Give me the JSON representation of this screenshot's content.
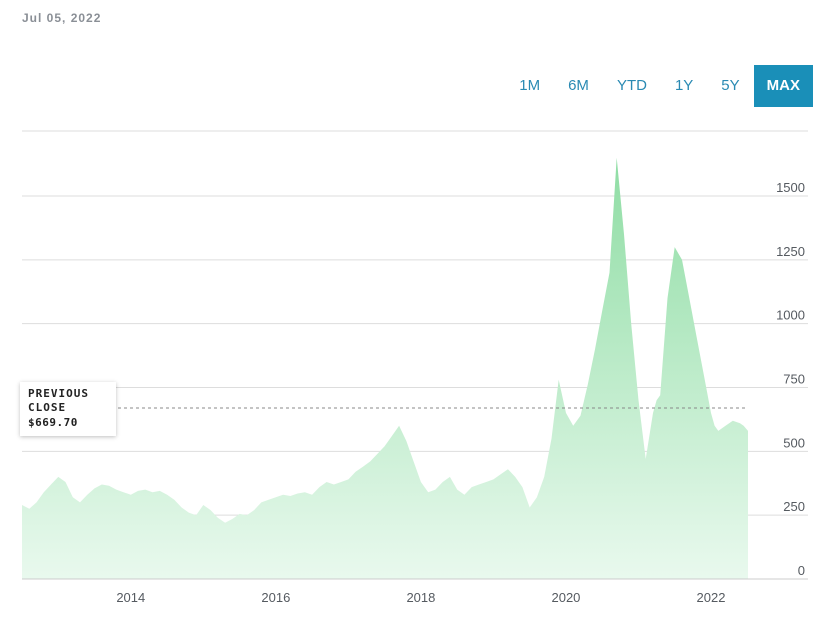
{
  "header": {
    "date": "Jul 05, 2022"
  },
  "range_tabs": [
    {
      "label": "1M",
      "active": false
    },
    {
      "label": "6M",
      "active": false
    },
    {
      "label": "YTD",
      "active": false
    },
    {
      "label": "1Y",
      "active": false
    },
    {
      "label": "5Y",
      "active": false
    },
    {
      "label": "MAX",
      "active": true
    }
  ],
  "previous_close": {
    "label": "PREVIOUS CLOSE",
    "value": "$669.70",
    "price": 669.7
  },
  "colors": {
    "area_top": "#8fdda4",
    "area_bottom": "#e9f9ee",
    "accent": "#1a8fb8",
    "grid": "#dddddd"
  },
  "chart_data": {
    "type": "area",
    "title": "",
    "xlabel": "",
    "ylabel": "",
    "ylim": [
      0,
      1700
    ],
    "xlim": [
      2012.5,
      2022.51
    ],
    "y_ticks": [
      "0",
      "250",
      "500",
      "750",
      "1000",
      "1250",
      "1500"
    ],
    "x_ticks": [
      "2014",
      "2016",
      "2018",
      "2020",
      "2022"
    ],
    "grid": true,
    "series": [
      {
        "x": [
          2012.5,
          2012.6,
          2012.7,
          2012.8,
          2012.9,
          2013.0,
          2013.1,
          2013.2,
          2013.3,
          2013.4,
          2013.5,
          2013.6,
          2013.7,
          2013.8,
          2013.9,
          2014.0,
          2014.1,
          2014.2,
          2014.3,
          2014.4,
          2014.5,
          2014.6,
          2014.7,
          2014.8,
          2014.9,
          2015.0,
          2015.1,
          2015.2,
          2015.3,
          2015.4,
          2015.5,
          2015.6,
          2015.7,
          2015.8,
          2015.9,
          2016.0,
          2016.1,
          2016.2,
          2016.3,
          2016.4,
          2016.5,
          2016.6,
          2016.7,
          2016.8,
          2016.9,
          2017.0,
          2017.1,
          2017.2,
          2017.3,
          2017.4,
          2017.5,
          2017.6,
          2017.7,
          2017.8,
          2017.9,
          2018.0,
          2018.1,
          2018.2,
          2018.3,
          2018.4,
          2018.5,
          2018.6,
          2018.7,
          2018.8,
          2018.9,
          2019.0,
          2019.1,
          2019.2,
          2019.3,
          2019.4,
          2019.5,
          2019.6,
          2019.7,
          2019.8,
          2019.9,
          2020.0,
          2020.1,
          2020.2,
          2020.3,
          2020.4,
          2020.5,
          2020.6,
          2020.7,
          2020.8,
          2020.9,
          2021.0,
          2021.1,
          2021.2,
          2021.25,
          2021.3,
          2021.4,
          2021.5,
          2021.6,
          2021.7,
          2021.8,
          2021.9,
          2022.0,
          2022.05,
          2022.1,
          2022.2,
          2022.3,
          2022.4,
          2022.45,
          2022.51
        ],
        "values": [
          290,
          275,
          300,
          340,
          370,
          400,
          380,
          320,
          300,
          330,
          355,
          370,
          365,
          350,
          340,
          330,
          345,
          350,
          340,
          345,
          330,
          310,
          280,
          260,
          250,
          290,
          270,
          240,
          220,
          235,
          255,
          250,
          270,
          300,
          310,
          320,
          330,
          325,
          335,
          340,
          330,
          360,
          380,
          370,
          380,
          390,
          420,
          440,
          460,
          490,
          520,
          560,
          600,
          540,
          460,
          380,
          340,
          350,
          380,
          400,
          350,
          330,
          360,
          370,
          380,
          390,
          410,
          430,
          400,
          360,
          280,
          320,
          400,
          550,
          780,
          650,
          600,
          640,
          760,
          900,
          1050,
          1200,
          1650,
          1350,
          1000,
          700,
          470,
          650,
          700,
          720,
          1100,
          1300,
          1250,
          1100,
          950,
          800,
          650,
          600,
          580,
          600,
          620,
          610,
          600,
          580
        ]
      }
    ]
  }
}
